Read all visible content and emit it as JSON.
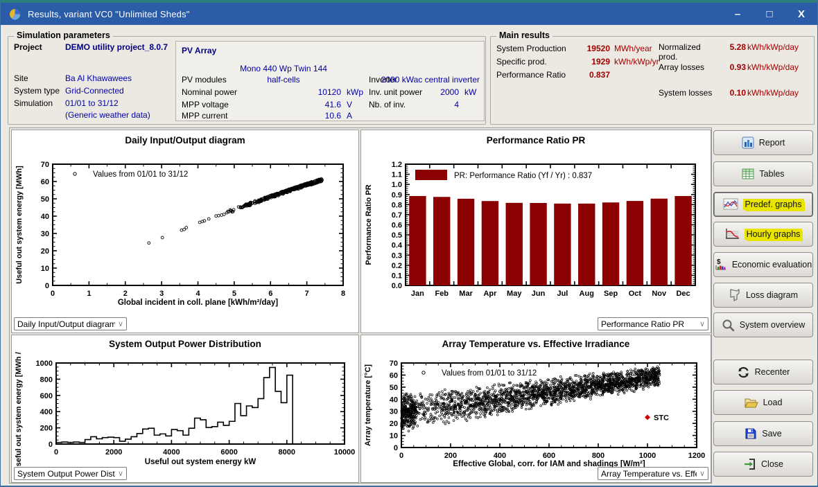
{
  "window": {
    "title": "Results, variant VC0  \"Unlimited Sheds\"",
    "controls": {
      "minimize": "–",
      "maximize": "□",
      "close": "X"
    }
  },
  "colors": {
    "titlebar": "#2B5CA8",
    "topstrip": "#2E7D7D",
    "window_bg": "#ECE9E2",
    "navy": "#000080",
    "value_blue": "#0000A6",
    "dark_red": "#A00000",
    "bar_maroon": "#8B0000",
    "highlight": "#E9E400",
    "stc_red": "#D40000"
  },
  "sim_params": {
    "legend": "Simulation parameters",
    "project_label": "Project",
    "project_value": "DEMO utility project_8.0.7",
    "site_label": "Site",
    "site_value": "Ba Al Khawawees",
    "system_type_label": "System type",
    "system_type_value": "Grid-Connected",
    "simulation_label": "Simulation",
    "simulation_value": "01/01 to 31/12",
    "simulation_note": "(Generic weather data)"
  },
  "pv_array": {
    "title": "PV Array",
    "module_line1": "Mono 440 Wp Twin 144",
    "module_line2": "half-cells",
    "pv_modules_label": "PV modules",
    "nominal_power_label": "Nominal power",
    "nominal_power_value": "10120",
    "nominal_power_unit": "kWp",
    "mpp_voltage_label": "MPP voltage",
    "mpp_voltage_value": "41.6",
    "mpp_voltage_unit": "V",
    "mpp_current_label": "MPP current",
    "mpp_current_value": "10.6",
    "mpp_current_unit": "A",
    "inverter_label": "Inverter",
    "inverter_value": "2000 kWac central inverter",
    "inv_unit_power_label": "Inv. unit power",
    "inv_unit_power_value": "2000",
    "inv_unit_power_unit": "kW",
    "nb_inv_label": "Nb. of inv.",
    "nb_inv_value": "4"
  },
  "main_results": {
    "legend": "Main results",
    "left": [
      {
        "label": "System Production",
        "value": "19520",
        "unit": "MWh/year"
      },
      {
        "label": "Specific prod.",
        "value": "1929",
        "unit": "kWh/kWp/yr"
      },
      {
        "label": "Performance Ratio",
        "value": "0.837",
        "unit": ""
      }
    ],
    "right": [
      {
        "label": "Normalized prod.",
        "value": "5.28",
        "unit": "kWh/kWp/day"
      },
      {
        "label": "Array losses",
        "value": "0.93",
        "unit": "kWh/kWp/day"
      },
      {
        "label": "System losses",
        "value": "0.10",
        "unit": "kWh/kWp/day"
      }
    ]
  },
  "buttons": [
    {
      "label": "Report"
    },
    {
      "label": "Tables"
    },
    {
      "label": "Predef. graphs",
      "highlight": true
    },
    {
      "label": "Hourly graphs",
      "highlight": true
    },
    {
      "label": "Economic evaluation"
    },
    {
      "label": "Loss diagram"
    },
    {
      "label": "System overview"
    },
    {
      "label": "Recenter"
    },
    {
      "label": "Load"
    },
    {
      "label": "Save"
    },
    {
      "label": "Close"
    }
  ],
  "chart_data": [
    {
      "type": "scatter",
      "title": "Daily Input/Output diagram",
      "xlabel": "Global incident in coll. plane [kWh/m²/day]",
      "ylabel": "Useful out system energy [MWh]",
      "xlim": [
        0,
        8
      ],
      "ylim": [
        0,
        70
      ],
      "xstep": 1,
      "ystep": 10,
      "xminor": 2,
      "yminor": 4,
      "ydec": 0,
      "legend": "Values from 01/01 to 31/12",
      "selector": "Daily Input/Output diagram",
      "selector_pos": "left",
      "points": [
        [
          2.65,
          24.5
        ],
        [
          3.02,
          27.6
        ],
        [
          3.55,
          31.9
        ],
        [
          3.62,
          32.3
        ],
        [
          3.68,
          33.4
        ],
        [
          4.05,
          36.4
        ],
        [
          4.12,
          36.9
        ],
        [
          4.18,
          37.3
        ],
        [
          4.3,
          38.4
        ],
        [
          4.5,
          40.1
        ],
        [
          4.57,
          40.3
        ],
        [
          4.65,
          40.6
        ],
        [
          4.72,
          41.0
        ],
        [
          4.8,
          42.0
        ],
        [
          4.86,
          42.6
        ]
      ],
      "gen": {
        "seed": 7,
        "count": 330,
        "xmin": 4.8,
        "xmax": 7.42,
        "pow": 0.62,
        "a": 9.81,
        "b": -0.215,
        "jitter": 0.85
      },
      "trend_note": "daily points, approx y = 9.81x - 0.215x^2, x from 2.6 to 7.4"
    },
    {
      "type": "bar",
      "title": "Performance Ratio PR",
      "ylabel": "Performance Ratio PR",
      "categories": [
        "Jan",
        "Feb",
        "Mar",
        "Apr",
        "May",
        "Jun",
        "Jul",
        "Aug",
        "Sep",
        "Oct",
        "Nov",
        "Dec"
      ],
      "values": [
        0.885,
        0.876,
        0.858,
        0.835,
        0.817,
        0.816,
        0.81,
        0.81,
        0.821,
        0.836,
        0.859,
        0.885
      ],
      "ylim": [
        0,
        1.2
      ],
      "ystep": 0.1,
      "yminor": 5,
      "ydec": 1,
      "legend": "PR: Performance Ratio (Yf / Yr) :  0.837",
      "bar_color": "#8B0000",
      "selector": "Performance Ratio PR",
      "selector_pos": "right"
    },
    {
      "type": "step",
      "title": "System Output Power Distribution",
      "xlabel": "Useful out system energy kW",
      "ylabel": "Useful out system energy  [MWh / Bin]",
      "xlim": [
        0,
        10000
      ],
      "ylim": [
        0,
        1000
      ],
      "xstep": 2000,
      "ystep": 200,
      "xminor": 4,
      "yminor": 4,
      "ydec": 0,
      "bin_width": 200,
      "values": [
        20,
        25,
        20,
        25,
        20,
        55,
        90,
        65,
        80,
        85,
        80,
        35,
        60,
        90,
        130,
        185,
        195,
        110,
        125,
        100,
        180,
        165,
        110,
        195,
        320,
        300,
        205,
        215,
        270,
        230,
        280,
        500,
        350,
        470,
        450,
        560,
        820,
        945,
        650,
        510,
        850
      ],
      "selector": "System Output Power Distrib",
      "selector_pos": "left"
    },
    {
      "type": "scatter",
      "title": "Array Temperature vs. Effective Irradiance",
      "xlabel": "Effective Global, corr. for IAM and shadings [W/m²]",
      "ylabel": "Array temperature [°C]",
      "xlim": [
        0,
        1200
      ],
      "ylim": [
        0,
        70
      ],
      "xstep": 200,
      "ystep": 10,
      "xminor": 4,
      "yminor": 4,
      "ydec": 0,
      "legend": "Values from 01/01 to 31/12",
      "selector": "Array Temperature vs. Effec",
      "selector_pos": "right",
      "gen": {
        "seed": 13,
        "count": 2400,
        "xmax": 1050,
        "xpow": 0.78,
        "blob_frac": 0.12,
        "blob_xmax": 60,
        "lower": [
          12,
          0.036
        ],
        "upper": [
          45,
          0.022
        ]
      },
      "stc": {
        "x": 1000,
        "y": 25,
        "label": "STC"
      },
      "trend_note": "hourly cloud: temp band from 12–45°C at 0 W/m² up to 48–67°C at 1000 W/m²"
    }
  ]
}
